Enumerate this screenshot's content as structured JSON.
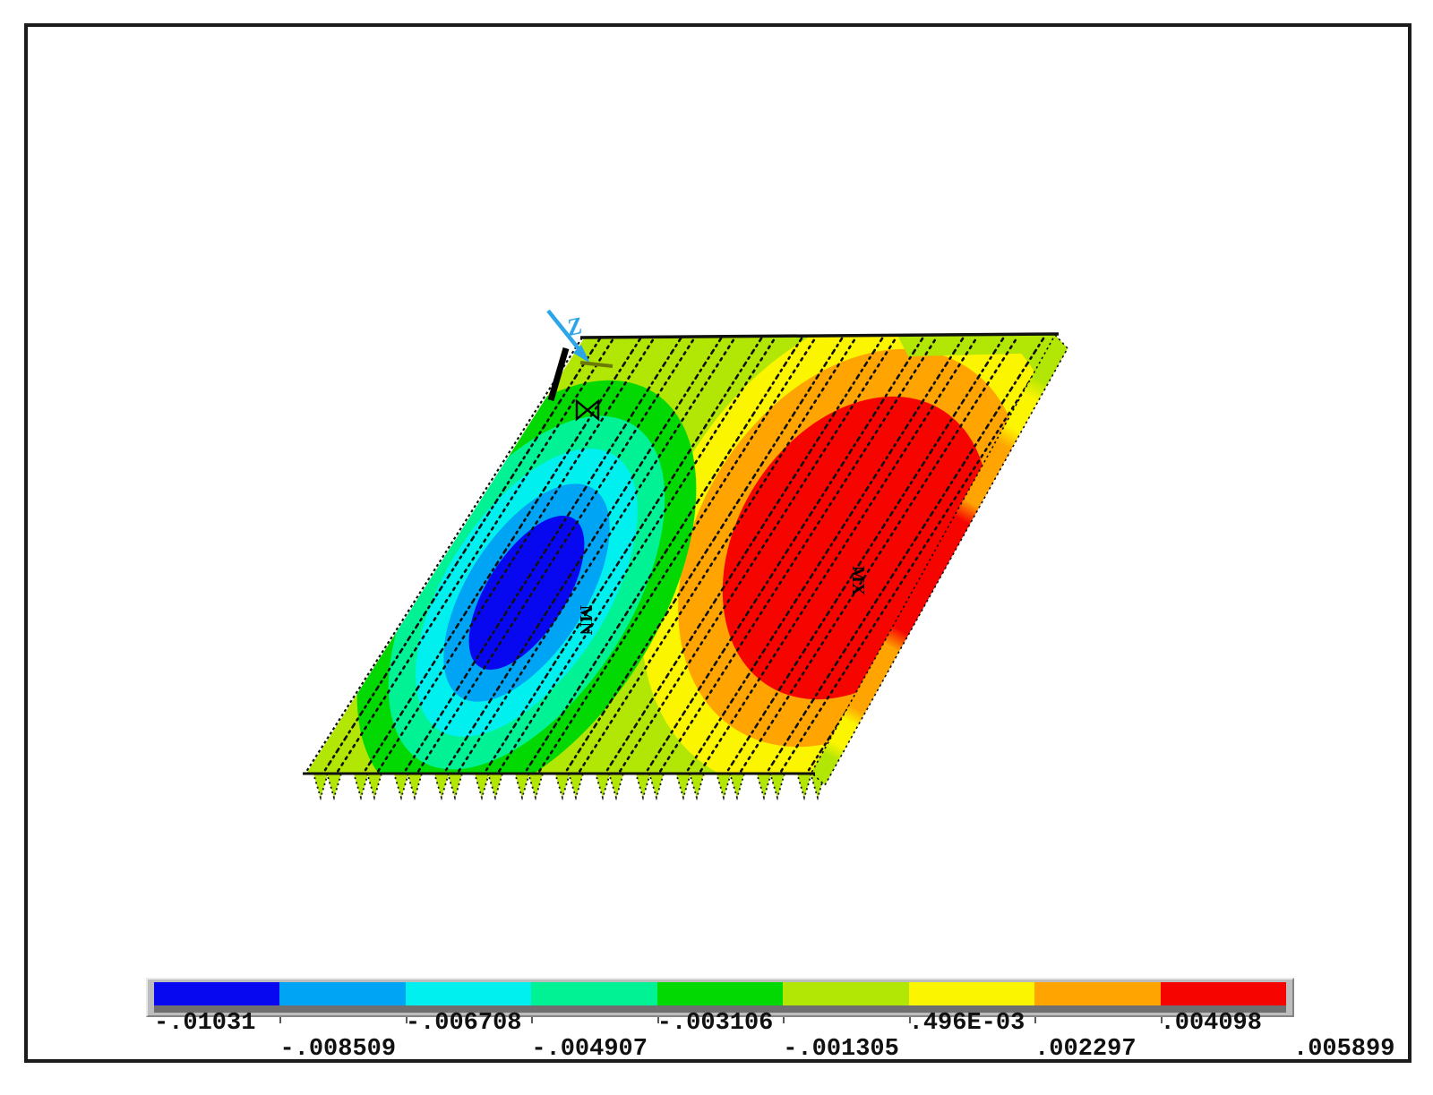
{
  "palette": [
    "#0808f0",
    "#00a4f4",
    "#00f0f0",
    "#00f294",
    "#02d902",
    "#b2e604",
    "#fcf500",
    "#ffa400",
    "#f60400"
  ],
  "legend": {
    "labels": [
      "-.01031",
      "-.008509",
      "-.006708",
      "-.004907",
      "-.003106",
      "-.001305",
      ".496E-03",
      ".002297",
      ".004098",
      ".005899"
    ],
    "values": [
      -0.01031,
      -0.008509,
      -0.006708,
      -0.004907,
      -0.003106,
      -0.001305,
      0.000496,
      0.002297,
      0.004098,
      0.005899
    ]
  },
  "markers": {
    "min": "MN",
    "max": "MX"
  },
  "axis": {
    "label": "Z",
    "color": "#2da6e8"
  },
  "chart_data": {
    "type": "heatmap",
    "subtype": "finite-element-contour-plot",
    "title": "",
    "description": "Isometric contour plot of a skewed reinforced plate; dashed lines are reinforcement members, triangles along the bottom edge are support symbols, MN/MX mark minimum and maximum result locations.",
    "contour_levels": [
      -0.01031,
      -0.008509,
      -0.006708,
      -0.004907,
      -0.003106,
      -0.001305,
      0.000496,
      0.002297,
      0.004098,
      0.005899
    ],
    "contour_level_labels": [
      "-.01031",
      "-.008509",
      "-.006708",
      "-.004907",
      "-.003106",
      "-.001305",
      ".496E-03",
      ".002297",
      ".004098",
      ".005899"
    ],
    "band_colors": [
      "#0808f0",
      "#00a4f4",
      "#00f0f0",
      "#00f294",
      "#02d902",
      "#b2e604",
      "#fcf500",
      "#ffa400",
      "#f60400"
    ],
    "min": {
      "label": "MN",
      "value": -0.01031,
      "location": "blue core, left-center of plate"
    },
    "max": {
      "label": "MX",
      "value": 0.005899,
      "location": "red region, right-center of plate"
    },
    "legend_position": "bottom",
    "axis_indicator": "Z",
    "grid": false
  }
}
